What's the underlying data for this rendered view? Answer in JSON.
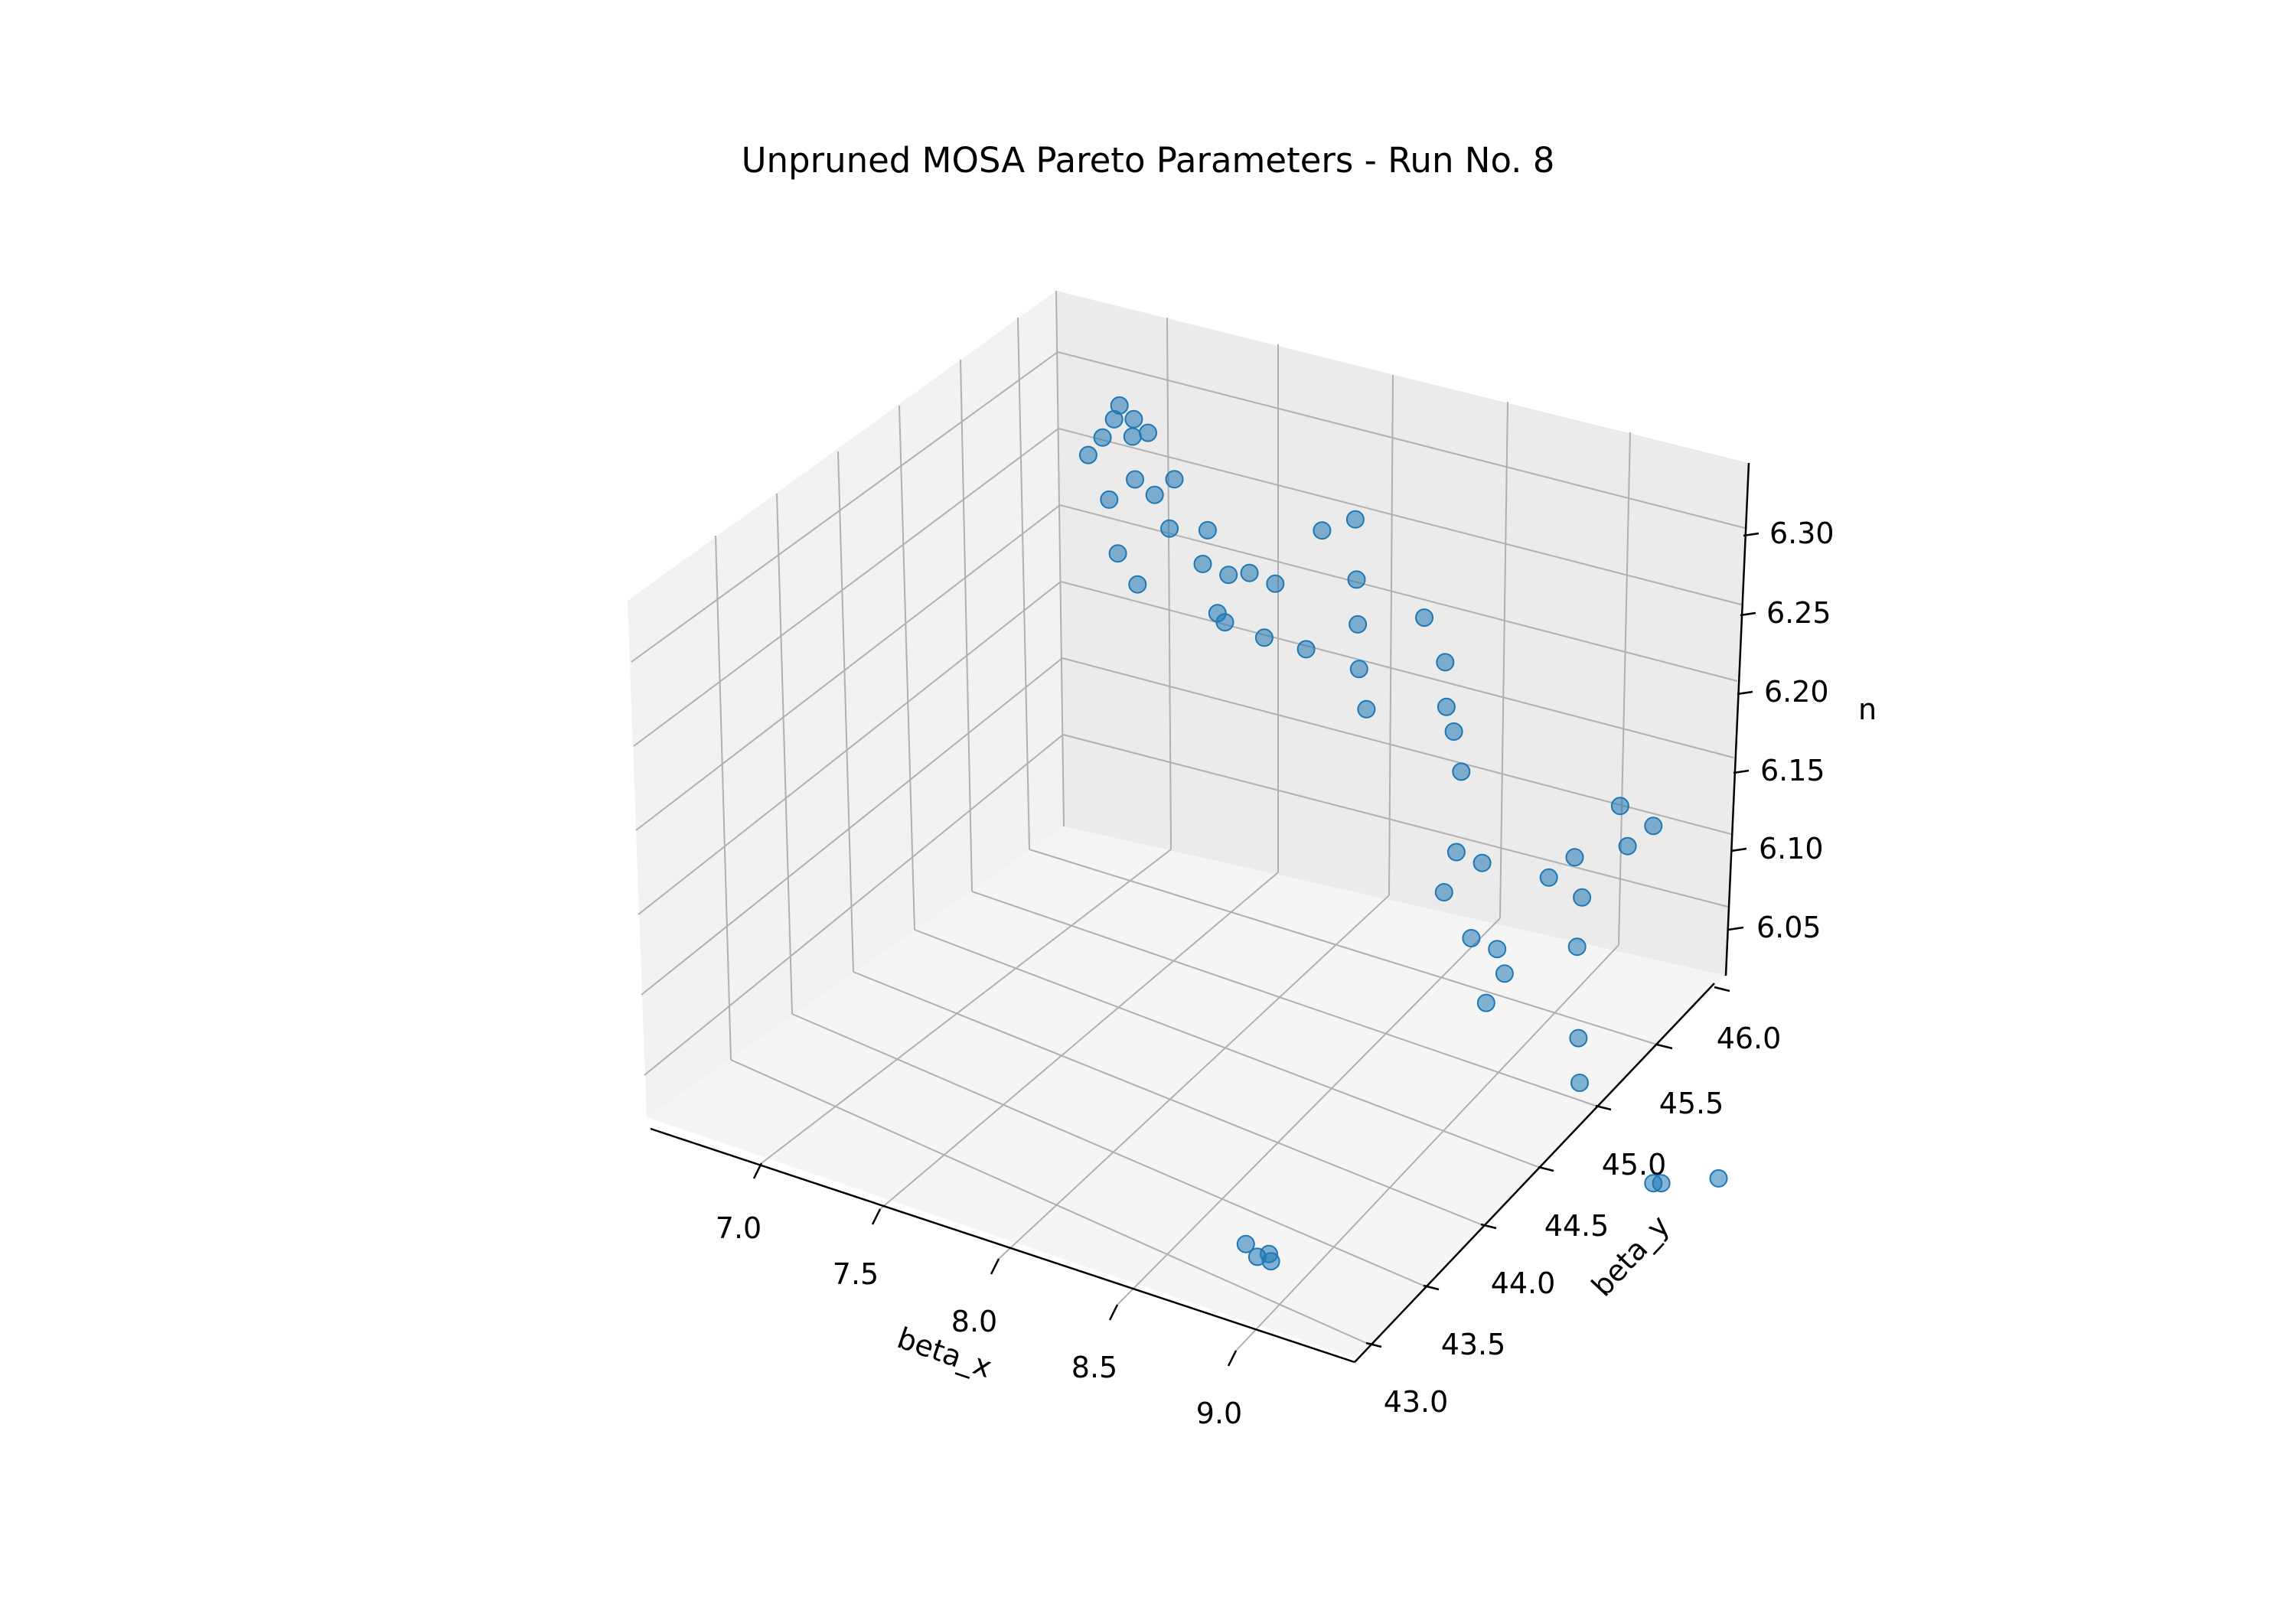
{
  "chart_data": {
    "type": "scatter",
    "title": "Unpruned MOSA Pareto Parameters - Run No. 8",
    "xlabel": "beta_x",
    "ylabel": "beta_y",
    "zlabel": "n",
    "x_ticks": [
      "7.0",
      "7.5",
      "8.0",
      "8.5",
      "9.0"
    ],
    "y_ticks": [
      "43.0",
      "43.5",
      "44.0",
      "44.5",
      "45.0",
      "45.5",
      "46.0"
    ],
    "z_ticks": [
      "6.05",
      "6.10",
      "6.15",
      "6.20",
      "6.25",
      "6.30"
    ],
    "grid": true,
    "color": "#1f77b4",
    "series": [
      {
        "points": [
          {
            "x": 7.2,
            "y": 46.0,
            "z": 6.3
          },
          {
            "x": 7.22,
            "y": 46.0,
            "z": 6.31
          },
          {
            "x": 7.25,
            "y": 46.05,
            "z": 6.3
          },
          {
            "x": 7.18,
            "y": 45.95,
            "z": 6.29
          },
          {
            "x": 7.28,
            "y": 46.1,
            "z": 6.29
          },
          {
            "x": 7.15,
            "y": 45.9,
            "z": 6.28
          },
          {
            "x": 7.3,
            "y": 45.95,
            "z": 6.27
          },
          {
            "x": 7.2,
            "y": 46.15,
            "z": 6.28
          },
          {
            "x": 7.25,
            "y": 45.85,
            "z": 6.26
          },
          {
            "x": 7.35,
            "y": 46.0,
            "z": 6.26
          },
          {
            "x": 7.4,
            "y": 46.05,
            "z": 6.27
          },
          {
            "x": 7.45,
            "y": 45.9,
            "z": 6.25
          },
          {
            "x": 7.5,
            "y": 46.1,
            "z": 6.24
          },
          {
            "x": 7.55,
            "y": 45.95,
            "z": 6.23
          },
          {
            "x": 7.6,
            "y": 46.05,
            "z": 6.22
          },
          {
            "x": 7.65,
            "y": 45.85,
            "z": 6.21
          },
          {
            "x": 7.35,
            "y": 45.7,
            "z": 6.24
          },
          {
            "x": 7.4,
            "y": 45.75,
            "z": 6.22
          },
          {
            "x": 7.7,
            "y": 46.0,
            "z": 6.23
          },
          {
            "x": 7.75,
            "y": 46.1,
            "z": 6.22
          },
          {
            "x": 7.8,
            "y": 45.9,
            "z": 6.2
          },
          {
            "x": 7.7,
            "y": 45.8,
            "z": 6.21
          },
          {
            "x": 7.9,
            "y": 46.15,
            "z": 6.26
          },
          {
            "x": 8.0,
            "y": 46.2,
            "z": 6.27
          },
          {
            "x": 8.05,
            "y": 46.1,
            "z": 6.24
          },
          {
            "x": 8.1,
            "y": 46.0,
            "z": 6.22
          },
          {
            "x": 8.15,
            "y": 45.9,
            "z": 6.2
          },
          {
            "x": 8.2,
            "y": 45.85,
            "z": 6.18
          },
          {
            "x": 8.0,
            "y": 45.8,
            "z": 6.21
          },
          {
            "x": 8.3,
            "y": 46.1,
            "z": 6.23
          },
          {
            "x": 8.4,
            "y": 46.05,
            "z": 6.21
          },
          {
            "x": 8.45,
            "y": 45.95,
            "z": 6.19
          },
          {
            "x": 8.5,
            "y": 45.9,
            "z": 6.18
          },
          {
            "x": 8.55,
            "y": 45.85,
            "z": 6.16
          },
          {
            "x": 8.6,
            "y": 45.7,
            "z": 6.12
          },
          {
            "x": 8.65,
            "y": 45.8,
            "z": 6.11
          },
          {
            "x": 8.6,
            "y": 45.6,
            "z": 6.1
          },
          {
            "x": 9.2,
            "y": 44.5,
            "z": 6.17
          },
          {
            "x": 9.25,
            "y": 44.6,
            "z": 6.16
          },
          {
            "x": 9.3,
            "y": 44.55,
            "z": 6.15
          },
          {
            "x": 9.35,
            "y": 44.8,
            "z": 6.2
          },
          {
            "x": 9.4,
            "y": 44.9,
            "z": 6.21
          },
          {
            "x": 9.45,
            "y": 44.85,
            "z": 6.19
          },
          {
            "x": 9.5,
            "y": 44.7,
            "z": 6.17
          },
          {
            "x": 9.3,
            "y": 44.4,
            "z": 6.14
          },
          {
            "x": 9.55,
            "y": 45.0,
            "z": 6.22
          },
          {
            "x": 9.6,
            "y": 45.1,
            "z": 6.23
          },
          {
            "x": 9.5,
            "y": 45.05,
            "z": 6.24
          },
          {
            "x": 9.55,
            "y": 44.6,
            "z": 6.12
          },
          {
            "x": 9.6,
            "y": 44.5,
            "z": 6.1
          },
          {
            "x": 9.0,
            "y": 43.2,
            "z": 6.03
          },
          {
            "x": 9.02,
            "y": 43.25,
            "z": 6.03
          },
          {
            "x": 8.98,
            "y": 43.15,
            "z": 6.04
          },
          {
            "x": 9.05,
            "y": 43.2,
            "z": 6.03
          },
          {
            "x": 9.6,
            "y": 45.1,
            "z": 6.0
          },
          {
            "x": 9.62,
            "y": 45.12,
            "z": 6.0
          },
          {
            "x": 9.75,
            "y": 45.3,
            "z": 6.0
          }
        ]
      }
    ]
  }
}
